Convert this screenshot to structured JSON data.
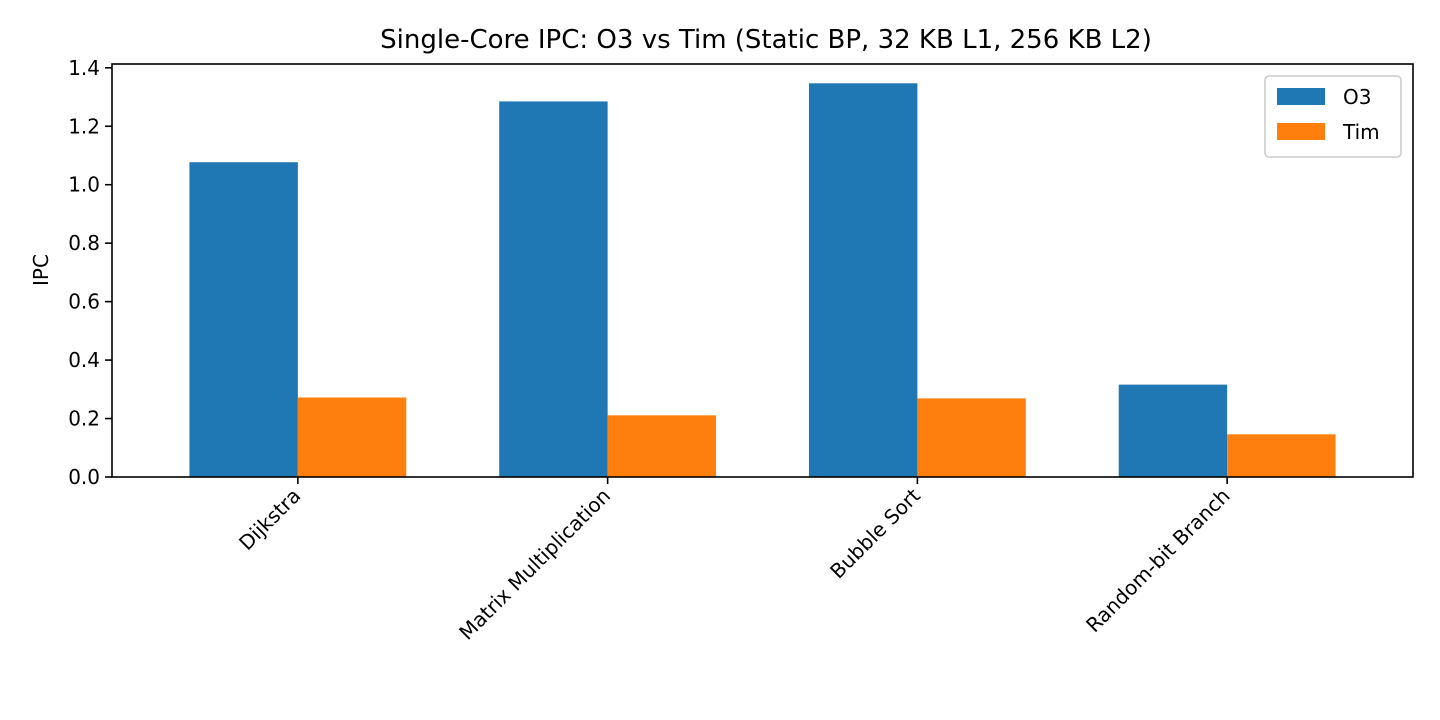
{
  "chart_data": {
    "type": "bar",
    "title": "Single-Core IPC: O3 vs Tim (Static BP, 32 KB L1, 256 KB L2)",
    "xlabel": "",
    "ylabel": "IPC",
    "categories": [
      "Dijkstra",
      "Matrix Multiplication",
      "Bubble Sort",
      "Random-bit Branch"
    ],
    "series": [
      {
        "name": "O3",
        "color": "#1f77b4",
        "values": [
          1.077,
          1.285,
          1.347,
          0.316
        ]
      },
      {
        "name": "Tim",
        "color": "#ff7f0e",
        "values": [
          0.272,
          0.211,
          0.269,
          0.146
        ]
      }
    ],
    "ylim": [
      0,
      1.413
    ],
    "yticks": [
      0.0,
      0.2,
      0.4,
      0.6,
      0.8,
      1.0,
      1.2,
      1.4
    ],
    "ytick_labels": [
      "0.0",
      "0.2",
      "0.4",
      "0.6",
      "0.8",
      "1.0",
      "1.2",
      "1.4"
    ],
    "xtick_rotation": 45,
    "grid": false,
    "legend_position": "top-right"
  }
}
